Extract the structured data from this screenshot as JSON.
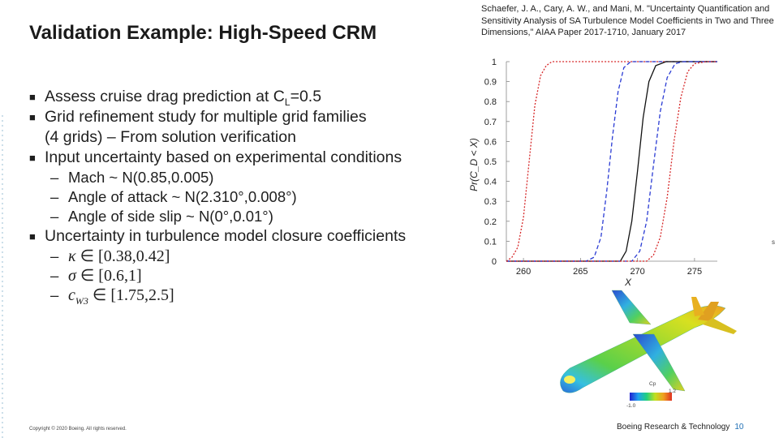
{
  "slide": {
    "title": "Validation Example: High-Speed CRM",
    "citation": "Schaefer, J. A., Cary, A. W., and Mani, M. \"Uncertainty Quantification and Sensitivity Analysis of SA Turbulence Model Coefficients in Two and Three Dimensions,\" AIAA Paper 2017-1710, January 2017",
    "bullet_marker": "■",
    "dash_marker": "–",
    "bullets": {
      "b1_prefix": "Assess cruise drag prediction at C",
      "b1_sub": "L",
      "b1_suffix": "=0.5",
      "b2_line1": "Grid refinement study for multiple grid families",
      "b2_line2": "(4 grids) – From solution verification",
      "b3": "Input uncertainty based on experimental conditions",
      "b3_items": [
        "Mach ~ N(0.85,0.005)",
        "Angle of attack ~ N(2.310°,0.008°)",
        "Angle of side slip ~ N(0°,0.01°)"
      ],
      "b4": "Uncertainty in turbulence model closure coefficients",
      "b4_items": {
        "kappa_sym": "κ",
        "kappa_range": "∈ [0.38,0.42]",
        "sigma_sym": "σ",
        "sigma_range": "∈ [0.6,1]",
        "cw3_sym": "c",
        "cw3_sub": "W3",
        "cw3_range": "∈ [1.75,2.5]"
      }
    },
    "footer_left": "Copyright © 2020 Boeing. All rights reserved.",
    "footer_right": "Boeing Research & Technology",
    "page_number": "10",
    "colorbar": {
      "label": "Cp",
      "max": "1.2",
      "min": "-1.0"
    },
    "edge_mark": "s"
  },
  "chart_data": {
    "type": "line",
    "xlabel": "X",
    "ylabel": "Pr(C_D < X)",
    "xlim": [
      258.5,
      277
    ],
    "ylim": [
      0,
      1
    ],
    "xticks": [
      "260",
      "265",
      "270",
      "275"
    ],
    "yticks": [
      "0",
      "0.1",
      "0.2",
      "0.3",
      "0.4",
      "0.5",
      "0.6",
      "0.7",
      "0.8",
      "0.9",
      "1"
    ],
    "grid": false,
    "series": [
      {
        "color": "#d62728",
        "dash": "2,2",
        "values": [
          [
            258.5,
            0
          ],
          [
            259.0,
            0.02
          ],
          [
            259.5,
            0.07
          ],
          [
            260.0,
            0.22
          ],
          [
            260.5,
            0.5
          ],
          [
            261.0,
            0.78
          ],
          [
            261.5,
            0.93
          ],
          [
            262.0,
            0.98
          ],
          [
            262.5,
            1.0
          ],
          [
            277,
            1.0
          ]
        ]
      },
      {
        "color": "#2b3cd4",
        "dash": "5,3",
        "values": [
          [
            258.5,
            0
          ],
          [
            265.5,
            0
          ],
          [
            266.2,
            0.02
          ],
          [
            266.8,
            0.12
          ],
          [
            267.3,
            0.35
          ],
          [
            267.8,
            0.62
          ],
          [
            268.3,
            0.85
          ],
          [
            268.8,
            0.97
          ],
          [
            269.4,
            1.0
          ],
          [
            277,
            1.0
          ]
        ]
      },
      {
        "color": "#111111",
        "dash": "",
        "values": [
          [
            258.5,
            0
          ],
          [
            268.5,
            0
          ],
          [
            269.0,
            0.05
          ],
          [
            269.5,
            0.2
          ],
          [
            270.0,
            0.45
          ],
          [
            270.5,
            0.72
          ],
          [
            271.0,
            0.9
          ],
          [
            271.6,
            0.98
          ],
          [
            272.5,
            1.0
          ],
          [
            277,
            1.0
          ]
        ]
      },
      {
        "color": "#2b3cd4",
        "dash": "5,3",
        "values": [
          [
            258.5,
            0
          ],
          [
            269.5,
            0
          ],
          [
            270.2,
            0.05
          ],
          [
            270.8,
            0.2
          ],
          [
            271.4,
            0.48
          ],
          [
            272.0,
            0.75
          ],
          [
            272.6,
            0.92
          ],
          [
            273.3,
            0.99
          ],
          [
            274.0,
            1.0
          ],
          [
            277,
            1.0
          ]
        ]
      },
      {
        "color": "#d62728",
        "dash": "2,2",
        "values": [
          [
            258.5,
            0
          ],
          [
            270.8,
            0
          ],
          [
            271.4,
            0.03
          ],
          [
            272.0,
            0.12
          ],
          [
            272.6,
            0.32
          ],
          [
            273.2,
            0.6
          ],
          [
            273.8,
            0.82
          ],
          [
            274.4,
            0.95
          ],
          [
            275.0,
            0.99
          ],
          [
            276.0,
            1.0
          ],
          [
            277,
            1.0
          ]
        ]
      }
    ]
  }
}
